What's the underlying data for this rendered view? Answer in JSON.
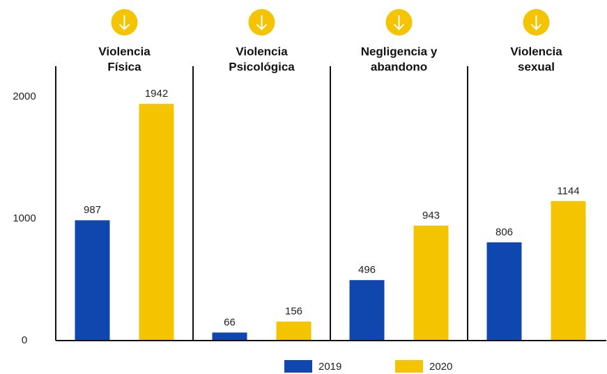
{
  "chart_data": {
    "type": "bar",
    "categories": [
      [
        "Violencia",
        "Física"
      ],
      [
        "Violencia",
        "Psicológica"
      ],
      [
        "Negligencia y",
        "abandono"
      ],
      [
        "Violencia",
        "sexual"
      ]
    ],
    "series": [
      {
        "name": "2019",
        "color": "#0f47af",
        "values": [
          987,
          66,
          496,
          806
        ]
      },
      {
        "name": "2020",
        "color": "#f5c400",
        "values": [
          1942,
          156,
          943,
          1144
        ]
      }
    ],
    "ylim": [
      0,
      2000
    ],
    "yticks": [
      0,
      1000,
      2000
    ],
    "grid": false,
    "legend": "bottom"
  }
}
